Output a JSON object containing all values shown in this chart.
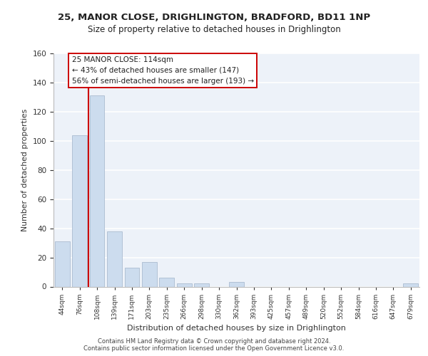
{
  "title_line1": "25, MANOR CLOSE, DRIGHLINGTON, BRADFORD, BD11 1NP",
  "title_line2": "Size of property relative to detached houses in Drighlington",
  "xlabel": "Distribution of detached houses by size in Drighlington",
  "ylabel": "Number of detached properties",
  "bar_labels": [
    "44sqm",
    "76sqm",
    "108sqm",
    "139sqm",
    "171sqm",
    "203sqm",
    "235sqm",
    "266sqm",
    "298sqm",
    "330sqm",
    "362sqm",
    "393sqm",
    "425sqm",
    "457sqm",
    "489sqm",
    "520sqm",
    "552sqm",
    "584sqm",
    "616sqm",
    "647sqm",
    "679sqm"
  ],
  "bar_values": [
    31,
    104,
    131,
    38,
    13,
    17,
    6,
    2,
    2,
    0,
    3,
    0,
    0,
    0,
    0,
    0,
    0,
    0,
    0,
    0,
    2
  ],
  "bar_color": "#ccdcee",
  "bar_edge_color": "#aabbd0",
  "annotation_text_line1": "25 MANOR CLOSE: 114sqm",
  "annotation_text_line2": "← 43% of detached houses are smaller (147)",
  "annotation_text_line3": "56% of semi-detached houses are larger (193) →",
  "vline_color": "#cc0000",
  "box_edge_color": "#cc0000",
  "ylim": [
    0,
    160
  ],
  "yticks": [
    0,
    20,
    40,
    60,
    80,
    100,
    120,
    140,
    160
  ],
  "bg_color": "#edf2f9",
  "footnote1": "Contains HM Land Registry data © Crown copyright and database right 2024.",
  "footnote2": "Contains public sector information licensed under the Open Government Licence v3.0."
}
